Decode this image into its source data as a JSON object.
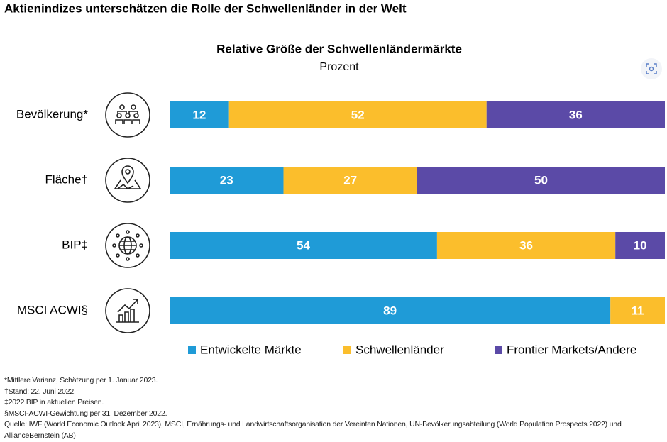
{
  "header": {
    "title": "Aktienindizes unterschätzen die Rolle der Schwellenländer in der Welt"
  },
  "chart_data": {
    "type": "stacked_bar_horizontal",
    "title": "Relative Größe der Schwellenländermärkte",
    "subtitle": "Prozent",
    "categories": [
      "Bevölkerung*",
      "Fläche†",
      "BIP‡",
      "MSCI ACWI§"
    ],
    "series": [
      {
        "name": "Entwickelte Märkte",
        "color": "#1f9bd7",
        "values": [
          12,
          23,
          54,
          89
        ]
      },
      {
        "name": "Schwellenländer",
        "color": "#fbbe2c",
        "values": [
          52,
          27,
          36,
          11
        ]
      },
      {
        "name": "Frontier Markets/Andere",
        "color": "#5b4aa7",
        "values": [
          36,
          50,
          10,
          null
        ]
      }
    ],
    "legend": "bottom"
  },
  "footnotes": [
    "*Mittlere Varianz, Schätzung per 1. Januar 2023.",
    "†Stand: 22. Juni 2022.",
    "‡2022 BIP in aktuellen Preisen.",
    "§MSCI-ACWI-Gewichtung per 31. Dezember 2022.",
    "Quelle: IWF (World Economic Outlook April 2023), MSCI, Ernährungs- und Landwirtschaftsorganisation der Vereinten Nationen, UN-Bevölkerungsabteilung (World Population Prospects 2022) und AllianceBernstein (AB)"
  ]
}
